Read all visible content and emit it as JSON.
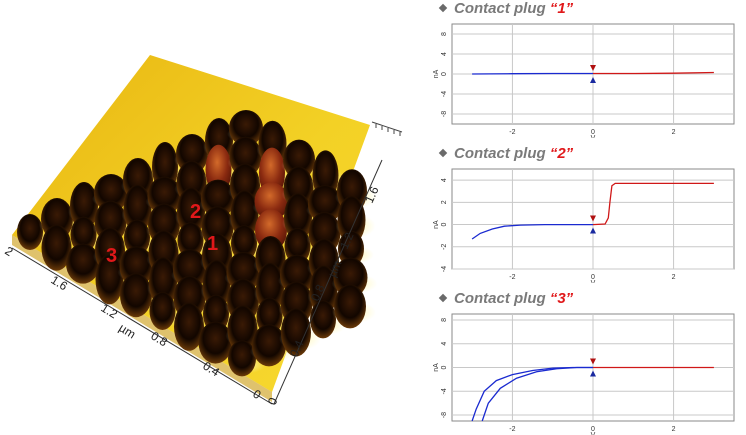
{
  "afm": {
    "labels": [
      {
        "text": "1",
        "color": "#e0181a"
      },
      {
        "text": "2",
        "color": "#e0181a"
      },
      {
        "text": "3",
        "color": "#e0181a"
      }
    ],
    "axis_unit": "µm",
    "x_ticks": [
      "2",
      "1.6",
      "1.2",
      "0.8",
      "0.4",
      "0"
    ],
    "y_ticks": [
      "0",
      "0.4",
      "0.8",
      "1.2",
      "1.6"
    ]
  },
  "chart_data": [
    {
      "type": "line",
      "title_prefix": "Contact plug ",
      "title_num": "“1”",
      "xlabel": "V",
      "ylabel": "nA",
      "xlim": [
        -3.5,
        3.5
      ],
      "ylim": [
        -10,
        10
      ],
      "x_ticks": [
        -2,
        0,
        2
      ],
      "y_ticks": [
        8,
        4,
        0,
        -4,
        -8
      ],
      "series": [
        {
          "color": "#1a2ad0",
          "points": [
            [
              -3.0,
              0
            ],
            [
              -2.0,
              0.05
            ],
            [
              -1.0,
              0.1
            ],
            [
              0,
              0.1
            ]
          ]
        },
        {
          "color": "#d01818",
          "points": [
            [
              0,
              0.1
            ],
            [
              1.0,
              0.1
            ],
            [
              2.0,
              0.15
            ],
            [
              3.0,
              0.3
            ]
          ]
        }
      ]
    },
    {
      "type": "line",
      "title_prefix": "Contact plug ",
      "title_num": "“2”",
      "xlabel": "V",
      "ylabel": "nA",
      "xlim": [
        -3.5,
        3.5
      ],
      "ylim": [
        -4,
        5
      ],
      "x_ticks": [
        -2,
        0,
        2
      ],
      "y_ticks": [
        4,
        2,
        0,
        -2,
        -4
      ],
      "series": [
        {
          "color": "#1a2ad0",
          "points": [
            [
              -3.0,
              -1.3
            ],
            [
              -2.8,
              -0.8
            ],
            [
              -2.5,
              -0.4
            ],
            [
              -2.2,
              -0.15
            ],
            [
              -1.8,
              -0.05
            ],
            [
              -1.2,
              0
            ],
            [
              -0.5,
              0
            ],
            [
              0,
              0
            ]
          ]
        },
        {
          "color": "#d01818",
          "points": [
            [
              0,
              0
            ],
            [
              0.3,
              0.05
            ],
            [
              0.38,
              0.6
            ],
            [
              0.42,
              2.0
            ],
            [
              0.47,
              3.5
            ],
            [
              0.55,
              3.7
            ],
            [
              1.0,
              3.7
            ],
            [
              2.0,
              3.7
            ],
            [
              3.0,
              3.7
            ]
          ]
        }
      ]
    },
    {
      "type": "line",
      "title_prefix": "Contact plug ",
      "title_num": "“3”",
      "xlabel": "V",
      "ylabel": "nA",
      "xlim": [
        -3.5,
        3.5
      ],
      "ylim": [
        -9,
        9
      ],
      "x_ticks": [
        -2,
        0,
        2
      ],
      "y_ticks": [
        8,
        4,
        0,
        -4,
        -8
      ],
      "series": [
        {
          "color": "#1a2ad0",
          "points": [
            [
              -3.0,
              -9
            ],
            [
              -2.9,
              -7
            ],
            [
              -2.7,
              -4
            ],
            [
              -2.4,
              -2.2
            ],
            [
              -2.0,
              -1.2
            ],
            [
              -1.5,
              -0.5
            ],
            [
              -1.0,
              -0.1
            ],
            [
              -0.5,
              0
            ],
            [
              0,
              0
            ]
          ]
        },
        {
          "color": "#1a2ad0",
          "points": [
            [
              -2.75,
              -9
            ],
            [
              -2.6,
              -6
            ],
            [
              -2.3,
              -3.5
            ],
            [
              -1.9,
              -1.8
            ],
            [
              -1.4,
              -0.7
            ],
            [
              -0.9,
              -0.2
            ],
            [
              -0.4,
              0
            ],
            [
              0,
              0
            ]
          ]
        },
        {
          "color": "#d01818",
          "points": [
            [
              0,
              0
            ],
            [
              1.0,
              0
            ],
            [
              2.0,
              0
            ],
            [
              3.0,
              0
            ]
          ]
        }
      ]
    }
  ]
}
